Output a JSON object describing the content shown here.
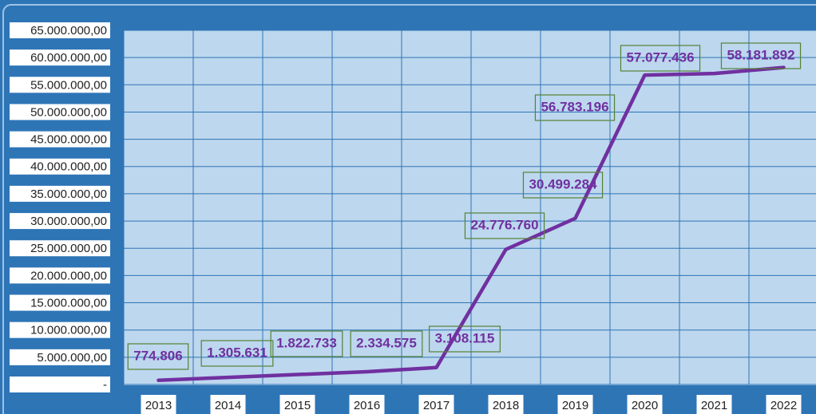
{
  "chart_data": {
    "type": "line",
    "categories": [
      "2013",
      "2014",
      "2015",
      "2016",
      "2017",
      "2018",
      "2019",
      "2020",
      "2021",
      "2022"
    ],
    "values": [
      774806,
      1305631,
      1822733,
      2334575,
      3108115,
      24776760,
      30499284,
      56783196,
      57077436,
      58181892
    ],
    "value_labels": [
      "774.806",
      "1.305.631",
      "1.822.733",
      "2.334.575",
      "3.108.115",
      "24.776.760",
      "30.499.284",
      "56.783.196",
      "57.077.436",
      "58.181.892"
    ],
    "color": "#7030a0",
    "ylim": [
      0,
      65000000
    ],
    "yticks": [
      {
        "value": 0,
        "label": "-"
      },
      {
        "value": 5000000,
        "label": "5.000.000,00"
      },
      {
        "value": 10000000,
        "label": "10.000.000,00"
      },
      {
        "value": 15000000,
        "label": "15.000.000,00"
      },
      {
        "value": 20000000,
        "label": "20.000.000,00"
      },
      {
        "value": 25000000,
        "label": "25.000.000,00"
      },
      {
        "value": 30000000,
        "label": "30.000.000,00"
      },
      {
        "value": 35000000,
        "label": "35.000.000,00"
      },
      {
        "value": 40000000,
        "label": "40.000.000,00"
      },
      {
        "value": 45000000,
        "label": "45.000.000,00"
      },
      {
        "value": 50000000,
        "label": "50.000.000,00"
      },
      {
        "value": 55000000,
        "label": "55.000.000,00"
      },
      {
        "value": 60000000,
        "label": "60.000.000,00"
      },
      {
        "value": 65000000,
        "label": "65.000.000,00"
      }
    ],
    "grid": true
  }
}
